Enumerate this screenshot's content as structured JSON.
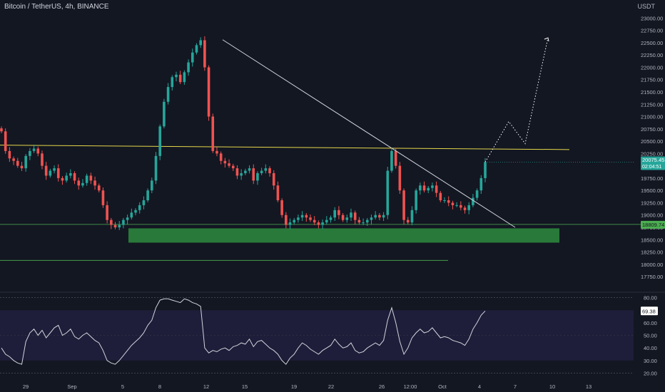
{
  "header": {
    "symbol": "Bitcoin / TetherUS",
    "interval": "4h",
    "exchange": "BINANCE",
    "title": "Bitcoin / TetherUS, 4h, BINANCE",
    "currency": "USDT"
  },
  "colors": {
    "background": "#131722",
    "up": "#26a69a",
    "down": "#ef5350",
    "trendline": "#d1d4dc",
    "resistance": "#e6d84a",
    "support_zone": "#2e8b3e",
    "support_line": "#4caf50",
    "rsi_line": "#d1d4dc",
    "rsi_band": "#1e1e3a"
  },
  "price_badges": {
    "last": "20075.45",
    "countdown": "02:04:51",
    "level": "18809.74",
    "rsi": "69.38"
  },
  "chart_data": [
    {
      "type": "line",
      "name": "price",
      "description_of_series": "4h candlestick closes approximated",
      "x_ticks": [
        "29",
        "Sep",
        "5",
        "8",
        "12",
        "15",
        "19",
        "22",
        "26",
        "12:00",
        "Oct",
        "4",
        "7",
        "10",
        "13"
      ],
      "y_ticks": [
        "23000.00",
        "22750.00",
        "22500.00",
        "22250.00",
        "22000.00",
        "21750.00",
        "21500.00",
        "21250.00",
        "21000.00",
        "20750.00",
        "20500.00",
        "20250.00",
        "20000.00",
        "19750.00",
        "19500.00",
        "19250.00",
        "19000.00",
        "18750.00",
        "18500.00",
        "18250.00",
        "18000.00",
        "17750.00"
      ],
      "ylim": [
        17650,
        23150
      ],
      "closes": [
        20700,
        20300,
        20150,
        20100,
        20000,
        19950,
        20200,
        20300,
        20350,
        20250,
        20000,
        19800,
        19900,
        19950,
        19750,
        19700,
        19800,
        19850,
        19700,
        19600,
        19650,
        19800,
        19700,
        19600,
        19500,
        19200,
        18900,
        18800,
        18750,
        18800,
        18900,
        18950,
        19050,
        19100,
        19200,
        19300,
        19500,
        19700,
        20200,
        20800,
        21300,
        21600,
        21800,
        21850,
        21700,
        21900,
        22100,
        22300,
        22450,
        22550,
        22000,
        21000,
        20300,
        20250,
        20100,
        20050,
        20000,
        19950,
        19800,
        19850,
        19900,
        19950,
        19700,
        19850,
        19900,
        19950,
        19850,
        19600,
        19300,
        19000,
        18800,
        18850,
        18900,
        18950,
        19000,
        18950,
        18900,
        18850,
        18800,
        18850,
        18900,
        18950,
        19100,
        19000,
        18900,
        18950,
        19050,
        18900,
        18850,
        18850,
        18900,
        18950,
        19000,
        18950,
        19000,
        19900,
        20300,
        20000,
        19500,
        18900,
        18850,
        19100,
        19500,
        19600,
        19500,
        19550,
        19600,
        19450,
        19300,
        19300,
        19250,
        19200,
        19200,
        19150,
        19100,
        19200,
        19350,
        19500,
        19750,
        20075
      ],
      "resistance_level": 20390,
      "support_zone": [
        18440,
        18730
      ],
      "support_level": 18809.74,
      "lower_line_level": 18080,
      "projection": [
        [
          20075,
          0
        ],
        [
          20900,
          1
        ],
        [
          20450,
          2
        ],
        [
          22600,
          3
        ]
      ]
    },
    {
      "type": "line",
      "name": "RSI",
      "y_ticks": [
        "80.00",
        "70.00",
        "60.00",
        "50.00",
        "40.00",
        "30.00",
        "20.00"
      ],
      "ylim": [
        18,
        82
      ],
      "band": [
        30,
        70
      ],
      "last": 69.38,
      "values": [
        40,
        35,
        33,
        30,
        28,
        27,
        45,
        52,
        55,
        50,
        54,
        48,
        52,
        56,
        58,
        50,
        52,
        55,
        49,
        47,
        50,
        52,
        49,
        46,
        44,
        38,
        30,
        28,
        27,
        30,
        34,
        38,
        42,
        45,
        48,
        52,
        58,
        62,
        72,
        78,
        79,
        79,
        78,
        77,
        76,
        79,
        78,
        76,
        75,
        73,
        40,
        36,
        38,
        37,
        39,
        40,
        38,
        41,
        42,
        44,
        43,
        47,
        41,
        45,
        46,
        43,
        40,
        38,
        35,
        30,
        27,
        32,
        35,
        40,
        44,
        42,
        39,
        37,
        35,
        38,
        40,
        42,
        47,
        43,
        40,
        41,
        44,
        38,
        36,
        37,
        40,
        42,
        44,
        42,
        46,
        62,
        72,
        60,
        45,
        35,
        40,
        48,
        52,
        55,
        52,
        53,
        56,
        52,
        48,
        49,
        48,
        46,
        45,
        44,
        42,
        47,
        55,
        60,
        66,
        69.38
      ]
    }
  ]
}
